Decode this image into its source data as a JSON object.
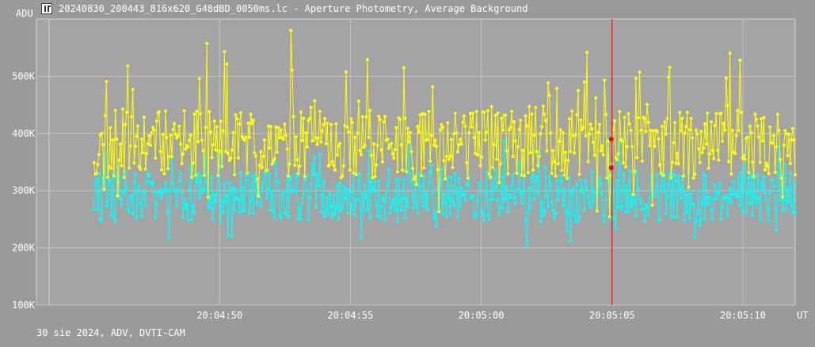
{
  "window": {
    "title": "20240830_200443_816x620_G48dBD_0050ms.lc - Aperture Photometry, Average Background",
    "icon": "app-logo-icon"
  },
  "footer": {
    "text": "30 sie 2024, ADV, DVTI-CAM"
  },
  "chart_data": {
    "type": "line",
    "title": "20240830_200443_816x620_G48dBD_0050ms.lc - Aperture Photometry, Average Background",
    "ylabel": "ADU",
    "xlabel": "UT",
    "grid": true,
    "xlim_seconds": [
      43,
      72
    ],
    "ylim": [
      100000,
      600000
    ],
    "x_ticks": [
      {
        "sec": 50,
        "label": "20:04:50"
      },
      {
        "sec": 55,
        "label": "20:04:55"
      },
      {
        "sec": 60,
        "label": "20:05:00"
      },
      {
        "sec": 65,
        "label": "20:05:05"
      },
      {
        "sec": 70,
        "label": "20:05:10"
      }
    ],
    "y_ticks": [
      {
        "value": 100000,
        "label": "100K"
      },
      {
        "value": 200000,
        "label": "200K"
      },
      {
        "value": 300000,
        "label": "300K"
      },
      {
        "value": 400000,
        "label": "400K"
      },
      {
        "value": 500000,
        "label": "500K"
      }
    ],
    "series": [
      {
        "key": "target",
        "color": "#ffff00",
        "base": 380000,
        "spread": 60000,
        "spikes": 150000,
        "seed": 11
      },
      {
        "key": "comparison",
        "color": "#00ffff",
        "base": 290000,
        "spread": 45000,
        "spikes": 90000,
        "seed": 29
      }
    ],
    "n_points": 560,
    "cursor": {
      "sec": 65.0,
      "color": "#ff0000",
      "target_value": 390000,
      "comparison_value": 340000
    }
  }
}
